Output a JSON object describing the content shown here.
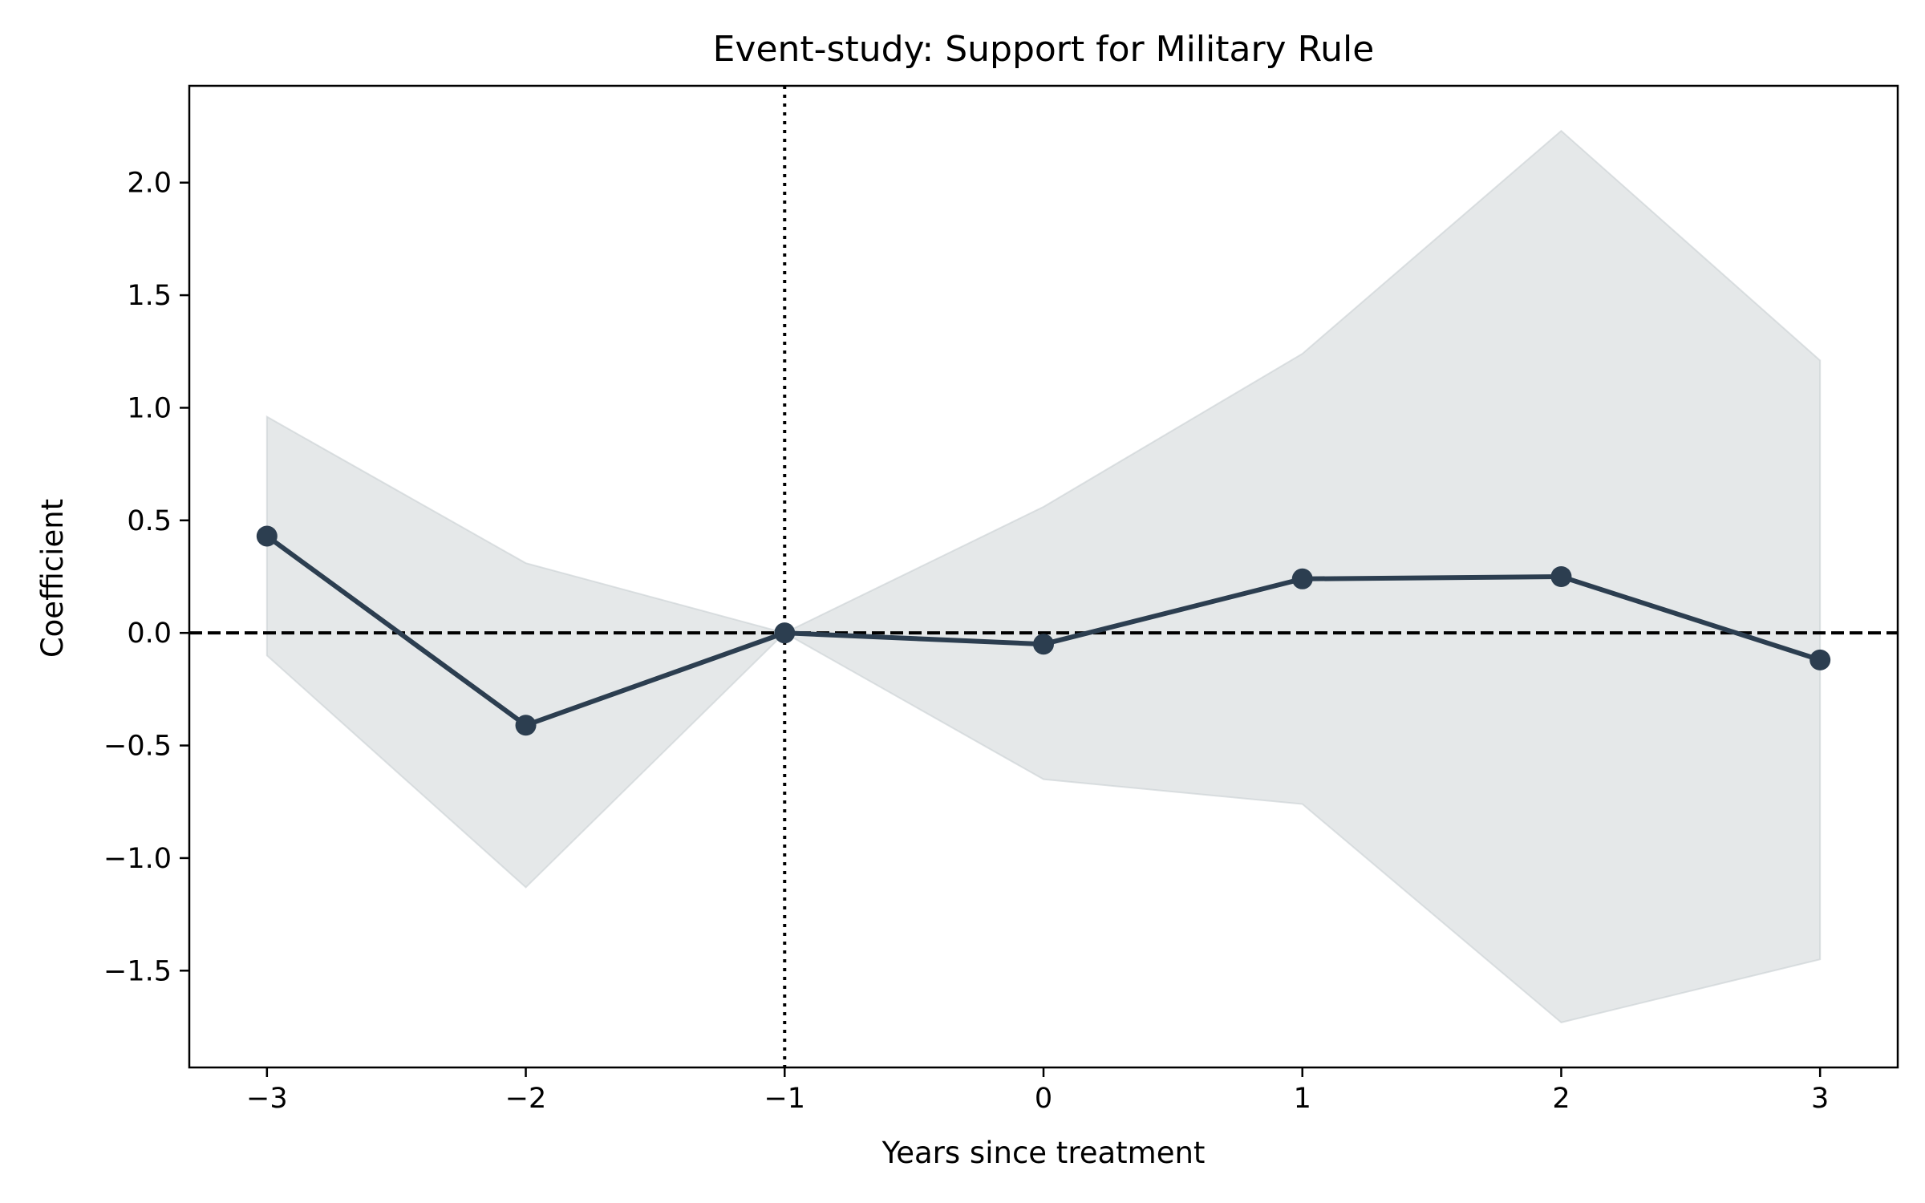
{
  "chart_data": {
    "type": "line",
    "title": "Event-study: Support for Military Rule",
    "xlabel": "Years since treatment",
    "ylabel": "Coefficient",
    "x": [
      -3,
      -2,
      -1,
      0,
      1,
      2,
      3
    ],
    "x_tick_labels": [
      "−3",
      "−2",
      "−1",
      "0",
      "1",
      "2",
      "3"
    ],
    "y_ticks": [
      -1.5,
      -1.0,
      -0.5,
      0.0,
      0.5,
      1.0,
      1.5,
      2.0
    ],
    "y_tick_labels": [
      "−1.5",
      "−1.0",
      "−0.5",
      "0.0",
      "0.5",
      "1.0",
      "1.5",
      "2.0"
    ],
    "xlim": [
      -3.3,
      3.3
    ],
    "ylim": [
      -1.93,
      2.43
    ],
    "series": [
      {
        "values": [
          0.43,
          -0.41,
          0.0,
          -0.05,
          0.24,
          0.25,
          -0.12
        ],
        "ci_lower": [
          -0.1,
          -1.13,
          0.0,
          -0.65,
          -0.76,
          -1.73,
          -1.45
        ],
        "ci_upper": [
          0.96,
          0.31,
          0.0,
          0.56,
          1.24,
          2.23,
          1.21
        ]
      }
    ],
    "reference_lines": {
      "horizontal_y": 0.0,
      "vertical_x": -1
    },
    "grid": false,
    "colors": {
      "line": "#2c3e50",
      "ci_band": "#c8cfd2",
      "reference": "#000000"
    }
  }
}
